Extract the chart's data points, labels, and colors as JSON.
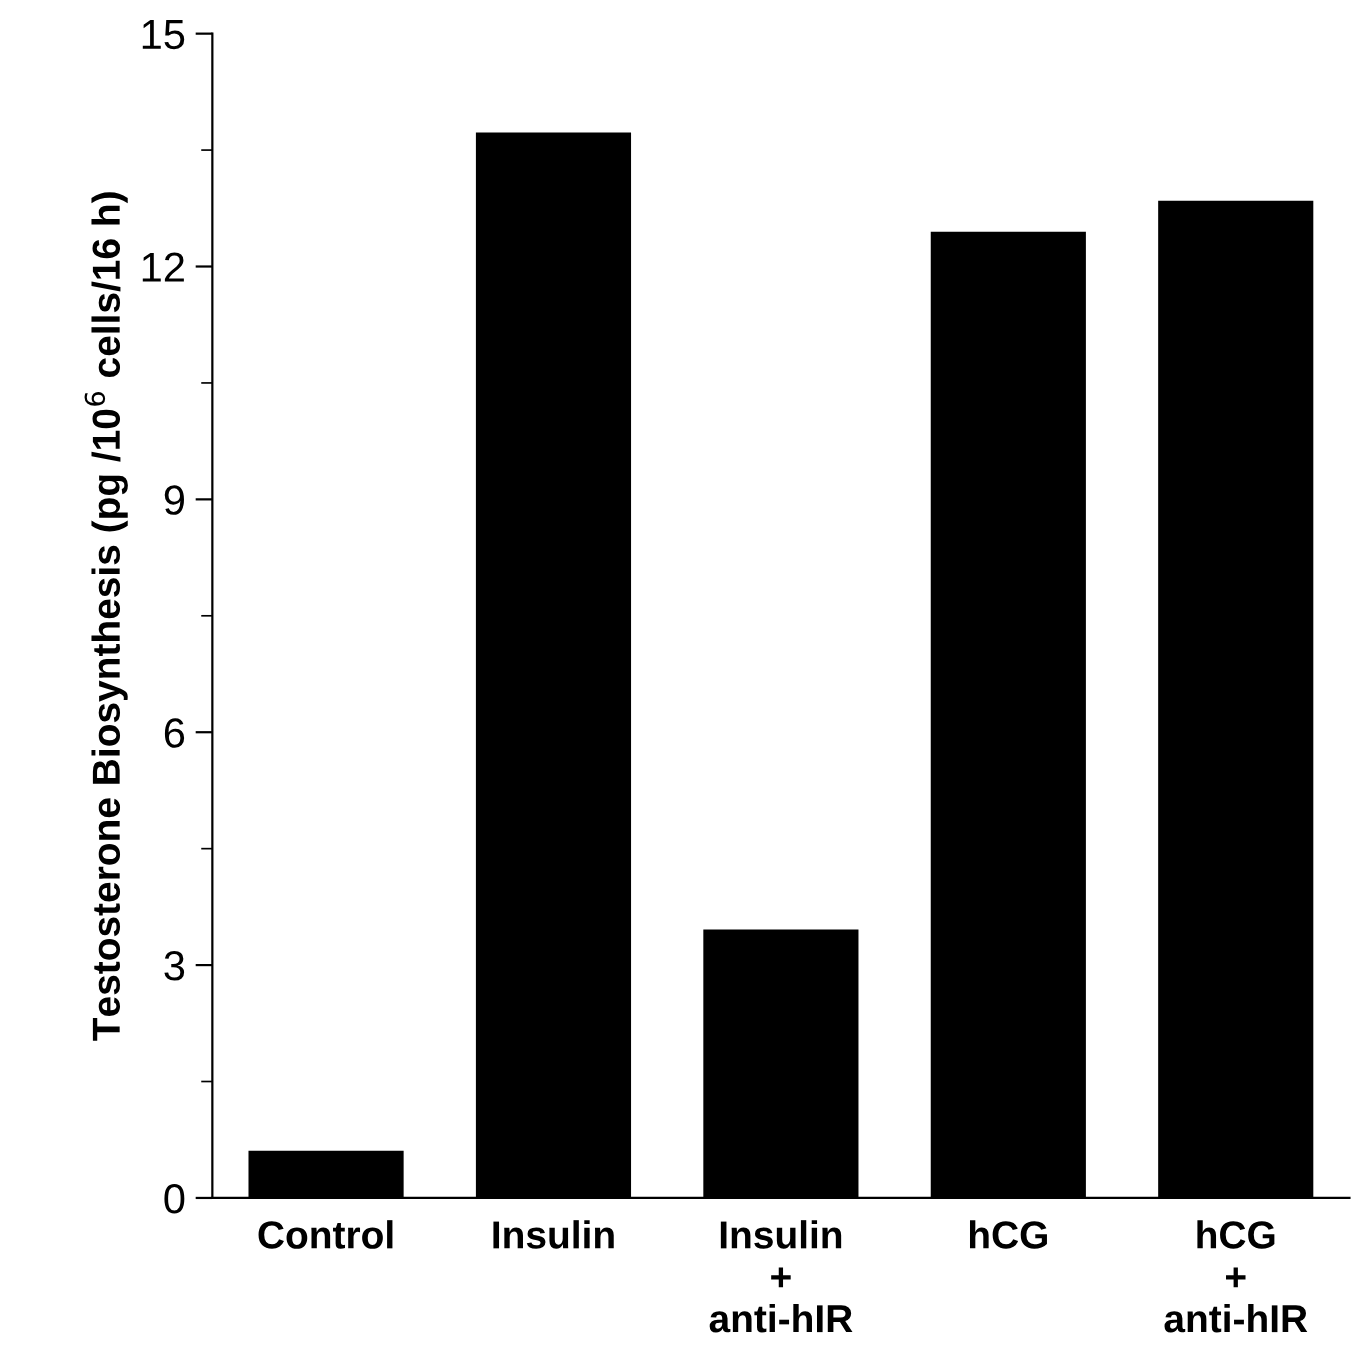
{
  "chart_data": {
    "type": "bar",
    "ylabel": "Testosterone Biosynthesis (pg /10$^{6}$ cells/16 h)",
    "categories": [
      "Control",
      "Insulin",
      "Insulin\n+\nanti-hIR",
      "hCG",
      "hCG\n+\nanti-hIR"
    ],
    "values": [
      0.59,
      13.71,
      3.44,
      12.43,
      12.83
    ],
    "color": "#000000",
    "ylim": [
      0,
      15
    ],
    "yticks": [
      0,
      3,
      6,
      9,
      12,
      15
    ],
    "grid": false,
    "legend": false
  }
}
